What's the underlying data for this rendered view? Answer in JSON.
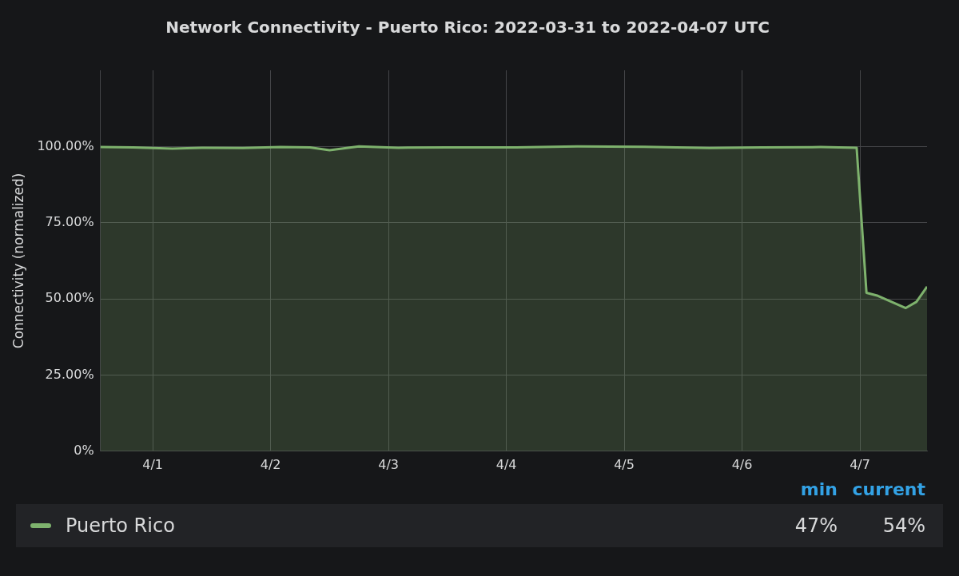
{
  "chart_data": {
    "type": "area",
    "title": "Network Connectivity - Puerto Rico: 2022-03-31 to 2022-04-07 UTC",
    "ylabel": "Connectivity (normalized)",
    "series": [
      {
        "name": "Puerto Rico",
        "color": "#7eb26d",
        "x": [
          "2022-03-31T13:20",
          "2022-03-31T20:00",
          "2022-04-01T04:00",
          "2022-04-01T10:00",
          "2022-04-01T18:20",
          "2022-04-02T02:00",
          "2022-04-02T08:00",
          "2022-04-02T12:00",
          "2022-04-02T18:00",
          "2022-04-03T02:00",
          "2022-04-03T12:00",
          "2022-04-04T02:00",
          "2022-04-04T14:30",
          "2022-04-05T04:00",
          "2022-04-05T17:20",
          "2022-04-06T04:00",
          "2022-04-06T16:00",
          "2022-04-06T23:20",
          "2022-04-07T01:20",
          "2022-04-07T03:40",
          "2022-04-07T09:20",
          "2022-04-07T11:30",
          "2022-04-07T13:40"
        ],
        "values": [
          99.8,
          99.7,
          99.3,
          99.6,
          99.5,
          99.8,
          99.7,
          98.8,
          100,
          99.6,
          99.7,
          99.7,
          100,
          99.9,
          99.5,
          99.7,
          99.8,
          99.6,
          52,
          51,
          47,
          49,
          54
        ]
      }
    ],
    "xlim": [
      "2022-03-31T13:20",
      "2022-04-07T13:40"
    ],
    "xticks": [
      {
        "value": "2022-04-01",
        "label": "4/1"
      },
      {
        "value": "2022-04-02",
        "label": "4/2"
      },
      {
        "value": "2022-04-03",
        "label": "4/3"
      },
      {
        "value": "2022-04-04",
        "label": "4/4"
      },
      {
        "value": "2022-04-05",
        "label": "4/5"
      },
      {
        "value": "2022-04-06",
        "label": "4/6"
      },
      {
        "value": "2022-04-07",
        "label": "4/7"
      }
    ],
    "ylim": [
      0,
      125
    ],
    "yticks": [
      {
        "value": 0,
        "label": "0%"
      },
      {
        "value": 25,
        "label": "25.00%"
      },
      {
        "value": 50,
        "label": "50.00%"
      },
      {
        "value": 75,
        "label": "75.00%"
      },
      {
        "value": 100,
        "label": "100.00%"
      }
    ],
    "grid": true,
    "marker": "none",
    "line_style": "solid",
    "legend": "bottom",
    "annotations": [
      "min",
      "current",
      "47%",
      "54%"
    ]
  }
}
